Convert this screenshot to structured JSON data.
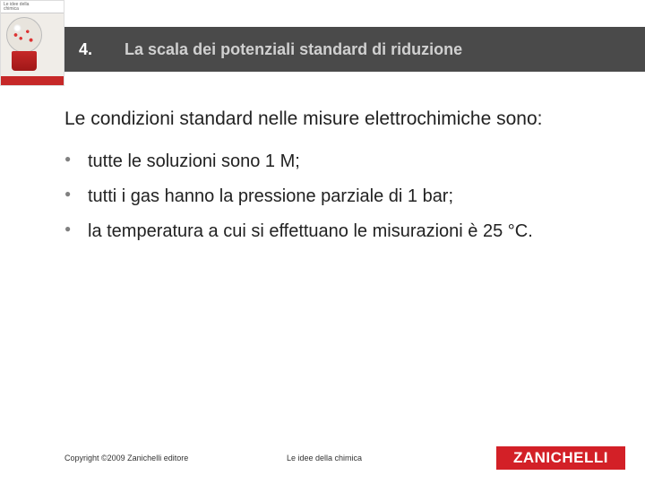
{
  "header": {
    "number": "4.",
    "title": "La scala dei potenziali standard di riduzione"
  },
  "cover": {
    "line1": "Le idee della",
    "line2": "chimica"
  },
  "content": {
    "intro": "Le condizioni standard nelle misure elettrochimiche sono:",
    "bullets": [
      "tutte le soluzioni sono 1 M;",
      "tutti i gas hanno la pressione parziale di 1 bar;",
      "la temperatura a cui si effettuano le misurazioni è 25 °C."
    ]
  },
  "footer": {
    "copyright": "Copyright ©2009 Zanichelli editore",
    "center": "Le idee della chimica",
    "logo": "ZANICHELLI"
  }
}
